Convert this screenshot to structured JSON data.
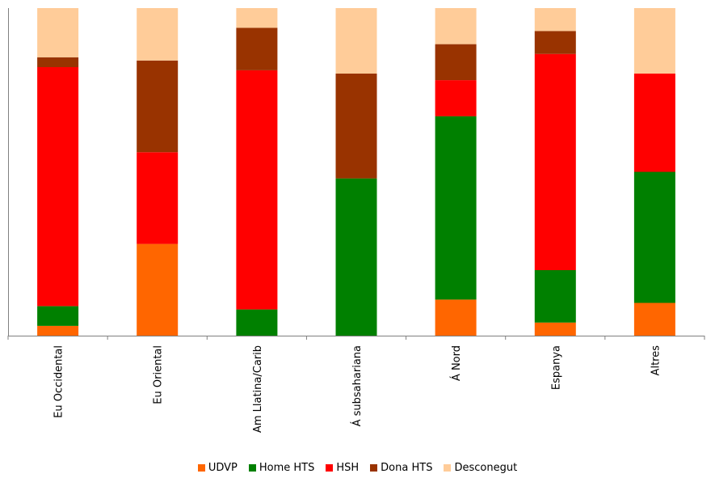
{
  "chart_data": {
    "type": "bar",
    "stacked": true,
    "normalized": true,
    "categories": [
      "Eu Occidental",
      "Eu Oriental",
      "Am Llatina/Carib",
      "Á subsahariana",
      "Á Nord",
      "Espanya",
      "Altres"
    ],
    "series": [
      {
        "name": "UDVP",
        "color": "#ff6600",
        "values": [
          3,
          28,
          0,
          0,
          11,
          4,
          10
        ]
      },
      {
        "name": "Home HTS",
        "color": "#008000",
        "values": [
          6,
          0,
          8,
          48,
          56,
          16,
          40
        ]
      },
      {
        "name": "HSH",
        "color": "#ff0000",
        "values": [
          73,
          28,
          73,
          0,
          11,
          66,
          30
        ]
      },
      {
        "name": "Dona HTS",
        "color": "#993300",
        "values": [
          3,
          28,
          13,
          32,
          11,
          7,
          0
        ]
      },
      {
        "name": "Desconegut",
        "color": "#ffcc99",
        "values": [
          15,
          16,
          6,
          20,
          11,
          7,
          20
        ]
      }
    ],
    "ylim": [
      0,
      100
    ],
    "grid": false,
    "legend_position": "bottom"
  }
}
